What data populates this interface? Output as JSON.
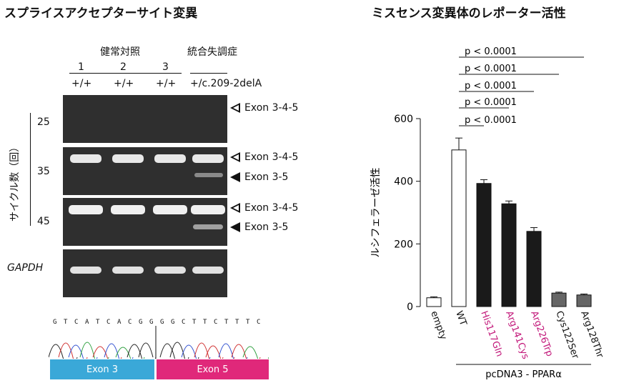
{
  "left_title": "スプライスアクセプターサイト変異",
  "right_title": "ミスセンス変異体のレポーター活性",
  "gel": {
    "group_control": "健常対照",
    "group_patient": "統合失調症",
    "lane_numbers": [
      "1",
      "2",
      "3"
    ],
    "genotypes": [
      "+/+",
      "+/+",
      "+/+",
      "+/c.209-2delA"
    ],
    "cycle_axis_label": "サイクル数（回）",
    "cycles": [
      "25",
      "35",
      "45"
    ],
    "gapdh_label": "GAPDH",
    "band_labels": {
      "exon345": "Exon 3-4-5",
      "exon35": "Exon 3-5"
    }
  },
  "sequence": {
    "left_bases": [
      "G",
      "T",
      "C",
      "A",
      "T",
      "C",
      "A",
      "C",
      "G",
      "G"
    ],
    "right_bases": [
      "G",
      "G",
      "C",
      "T",
      "T",
      "C",
      "T",
      "T",
      "T",
      "C"
    ],
    "exon_left": "Exon 3",
    "exon_right": "Exon 5",
    "exon_left_color": "#3aa8d8",
    "exon_right_color": "#e0287a"
  },
  "chart_data": {
    "type": "bar",
    "categories": [
      "empty",
      "WT",
      "His117Gln",
      "Arg141Cys",
      "Arg226Trp",
      "Cys122Ser",
      "Arg128Thr"
    ],
    "values": [
      28,
      500,
      393,
      328,
      240,
      43,
      37
    ],
    "errors": [
      3,
      38,
      12,
      9,
      12,
      3,
      3
    ],
    "fills": [
      "#ffffff",
      "#ffffff",
      "#1a1a1a",
      "#1a1a1a",
      "#1a1a1a",
      "#666666",
      "#666666"
    ],
    "label_colors": [
      "#111111",
      "#111111",
      "#c2187a",
      "#c2187a",
      "#c2187a",
      "#111111",
      "#111111"
    ],
    "ylabel": "ルシフェラーゼ活性",
    "ylim": [
      0,
      600
    ],
    "yticks": [
      "0",
      "200",
      "400",
      "600"
    ],
    "group_label": "pcDNA3 - PPARα",
    "significance": [
      {
        "from": "WT",
        "to": "His117Gln",
        "text": "p < 0.0001"
      },
      {
        "from": "WT",
        "to": "Arg141Cys",
        "text": "p < 0.0001"
      },
      {
        "from": "WT",
        "to": "Arg226Trp",
        "text": "p < 0.0001"
      },
      {
        "from": "WT",
        "to": "Cys122Ser",
        "text": "p < 0.0001"
      },
      {
        "from": "WT",
        "to": "Arg128Thr",
        "text": "p < 0.0001"
      }
    ]
  }
}
